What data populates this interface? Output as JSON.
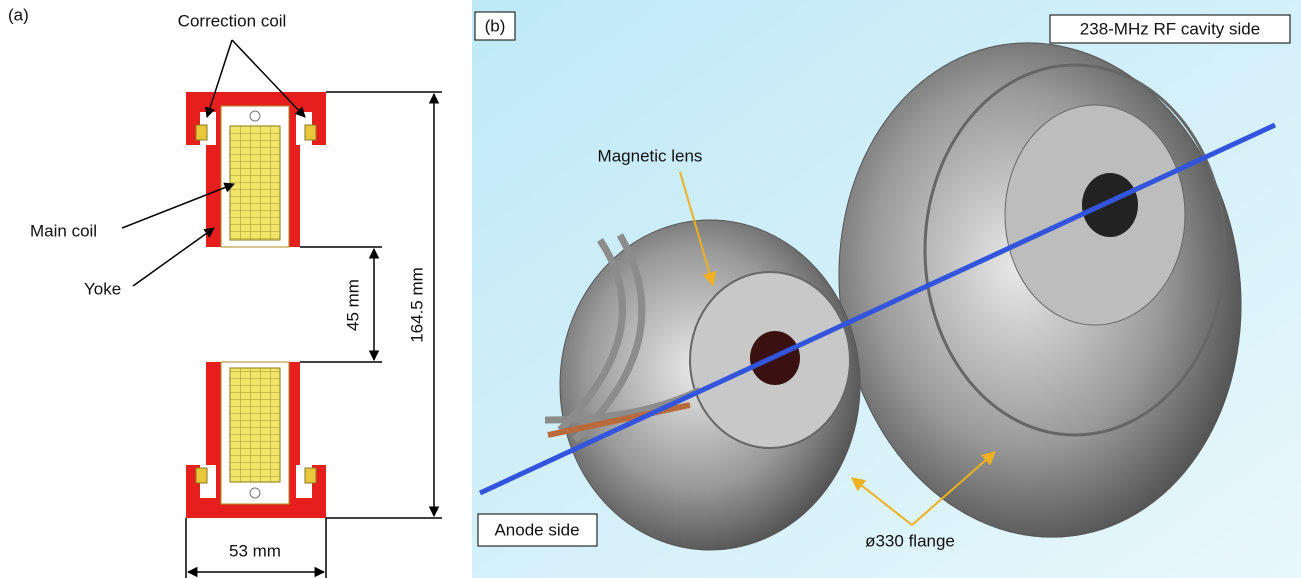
{
  "panel_a": {
    "label": "(a)",
    "correction_coil": "Correction coil",
    "main_coil": "Main coil",
    "yoke": "Yoke",
    "gap": "45 mm",
    "height": "164.5 mm",
    "width": "53 mm"
  },
  "panel_b": {
    "label": "(b)",
    "rf_side": "238-MHz RF cavity side",
    "magnetic_lens": "Magnetic lens",
    "anode_side": "Anode side",
    "flange": "ø330 flange"
  }
}
